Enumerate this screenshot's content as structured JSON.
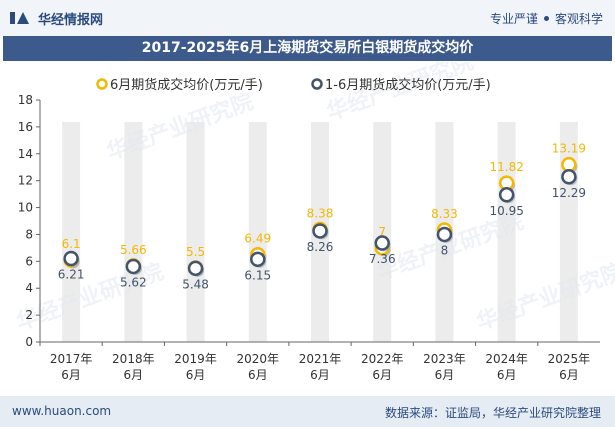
{
  "header": {
    "brand": "华经情报网",
    "tagline_1": "专业严谨",
    "tagline_2": "客观科学"
  },
  "title": "2017-2025年6月上海期货交易所白银期货成交均价",
  "footer": {
    "website": "www.huaon.com",
    "source": "数据来源：证监局，华经产业研究院整理"
  },
  "watermark": "华经产业研究院",
  "colors": {
    "series1": "#f5b800",
    "series2": "#44546a",
    "title_bg": "#3c5a8c",
    "band": "#ececec"
  },
  "chart_data": {
    "type": "line",
    "categories": [
      [
        "2017年",
        "6月"
      ],
      [
        "2018年",
        "6月"
      ],
      [
        "2019年",
        "6月"
      ],
      [
        "2020年",
        "6月"
      ],
      [
        "2021年",
        "6月"
      ],
      [
        "2022年",
        "6月"
      ],
      [
        "2023年",
        "6月"
      ],
      [
        "2024年",
        "6月"
      ],
      [
        "2025年",
        "6月"
      ]
    ],
    "series": [
      {
        "name": "6月期货成交均价(万元/手)",
        "values": [
          6.1,
          5.66,
          5.5,
          6.49,
          8.38,
          7,
          8.33,
          11.82,
          13.19
        ],
        "labels": [
          "6.1",
          "5.66",
          "5.5",
          "6.49",
          "8.38",
          "7",
          "8.33",
          "11.82",
          "13.19"
        ],
        "color": "#f5b800",
        "label_position": "above"
      },
      {
        "name": "1-6月期货成交均价(万元/手)",
        "values": [
          6.21,
          5.62,
          5.48,
          6.15,
          8.26,
          7.36,
          8,
          10.95,
          12.29
        ],
        "labels": [
          "6.21",
          "5.62",
          "5.48",
          "6.15",
          "8.26",
          "7.36",
          "8",
          "10.95",
          "12.29"
        ],
        "color": "#44546a",
        "label_position": "below"
      }
    ],
    "yticks": [
      "0",
      "2",
      "4",
      "6",
      "8",
      "10",
      "12",
      "14",
      "16",
      "18"
    ],
    "ylim": [
      0,
      18
    ],
    "grid": false,
    "legend": "top-center"
  }
}
